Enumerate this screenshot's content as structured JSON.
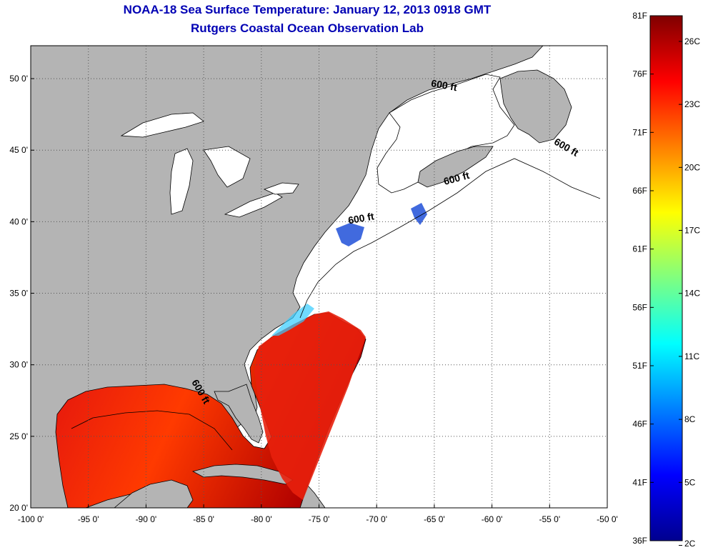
{
  "header": {
    "title": "NOAA-18 Sea Surface Temperature:  January 12, 2013 0918 GMT",
    "subtitle": "Rutgers Coastal Ocean Observation Lab"
  },
  "map": {
    "lon_range": [
      -100,
      -50
    ],
    "lat_range": [
      20,
      52.3
    ],
    "x_ticks": [
      {
        "value": -100,
        "label": "-100 0'"
      },
      {
        "value": -95,
        "label": "-95 0'"
      },
      {
        "value": -90,
        "label": "-90 0'"
      },
      {
        "value": -85,
        "label": "-85 0'"
      },
      {
        "value": -80,
        "label": "-80 0'"
      },
      {
        "value": -75,
        "label": "-75 0'"
      },
      {
        "value": -70,
        "label": "-70 0'"
      },
      {
        "value": -65,
        "label": "-65 0'"
      },
      {
        "value": -60,
        "label": "-60 0'"
      },
      {
        "value": -55,
        "label": "-55 0'"
      },
      {
        "value": -50,
        "label": "-50 0'"
      }
    ],
    "y_ticks": [
      {
        "value": 50,
        "label": "50 0'"
      },
      {
        "value": 45,
        "label": "45 0'"
      },
      {
        "value": 40,
        "label": "40 0'"
      },
      {
        "value": 35,
        "label": "35 0'"
      },
      {
        "value": 30,
        "label": "30 0'"
      },
      {
        "value": 25,
        "label": "25 0'"
      },
      {
        "value": 20,
        "label": "20 0'"
      }
    ],
    "grid": "dotted",
    "depth_contour_label": "600 ft",
    "depth_labels": [
      {
        "lon": -64.2,
        "lat": 49.3,
        "rotate": 10
      },
      {
        "lon": -53.7,
        "lat": 45.0,
        "rotate": 30
      },
      {
        "lon": -63.0,
        "lat": 42.8,
        "rotate": -15
      },
      {
        "lon": -71.3,
        "lat": 40.0,
        "rotate": -10
      },
      {
        "lon": -85.5,
        "lat": 28.0,
        "rotate": 60
      }
    ],
    "colors": {
      "land": "#b4b4b4",
      "water_no_data": "#ffffff",
      "coastline": "#000000"
    }
  },
  "colorbar": {
    "f_ticks": [
      {
        "value": 36,
        "label": "36F"
      },
      {
        "value": 41,
        "label": "41F"
      },
      {
        "value": 46,
        "label": "46F"
      },
      {
        "value": 51,
        "label": "51F"
      },
      {
        "value": 56,
        "label": "56F"
      },
      {
        "value": 61,
        "label": "61F"
      },
      {
        "value": 66,
        "label": "66F"
      },
      {
        "value": 71,
        "label": "71F"
      },
      {
        "value": 76,
        "label": "76F"
      },
      {
        "value": 81,
        "label": "81F"
      }
    ],
    "c_ticks": [
      {
        "value": 2,
        "label": "2C"
      },
      {
        "value": 5,
        "label": "5C"
      },
      {
        "value": 8,
        "label": "8C"
      },
      {
        "value": 11,
        "label": "11C"
      },
      {
        "value": 14,
        "label": "14C"
      },
      {
        "value": 17,
        "label": "17C"
      },
      {
        "value": 20,
        "label": "20C"
      },
      {
        "value": 23,
        "label": "23C"
      },
      {
        "value": 26,
        "label": "26C"
      }
    ],
    "f_range": [
      36,
      81
    ],
    "colormap": "jet"
  }
}
